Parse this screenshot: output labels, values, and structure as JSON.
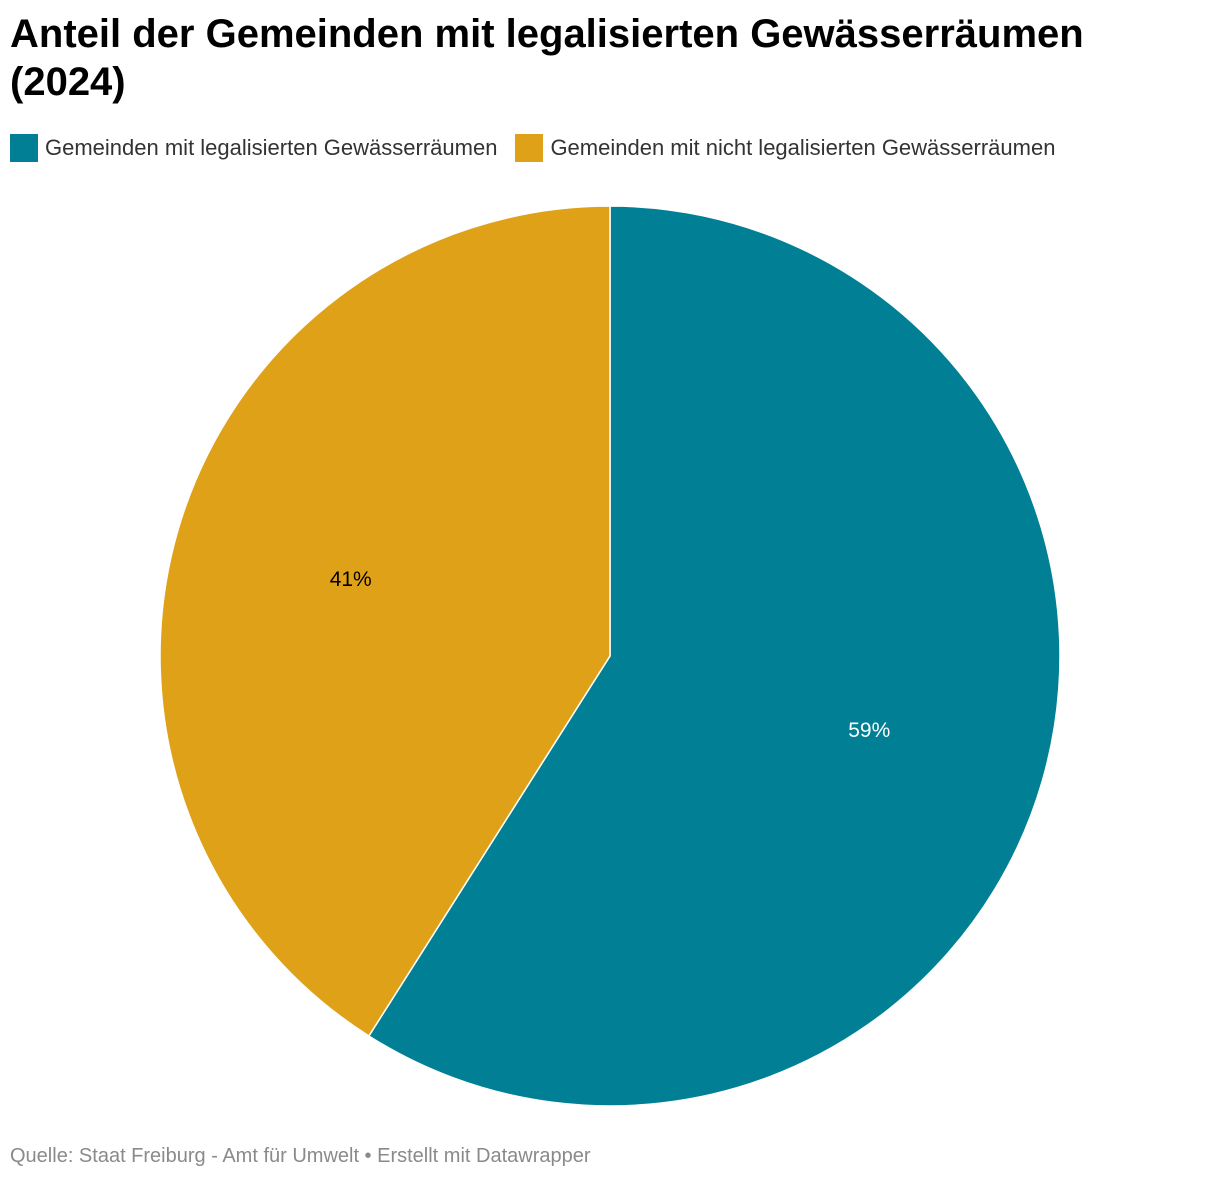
{
  "chart_data": {
    "type": "pie",
    "title": "Anteil der Gemeinden mit legalisierten Gewässerräumen (2024)",
    "slices": [
      {
        "name": "Gemeinden mit legalisierten Gewässerräumen",
        "value": 59,
        "label": "59%",
        "color": "#007f95",
        "label_color": "#ffffff"
      },
      {
        "name": "Gemeinden mit nicht legalisierten Gewässerräumen",
        "value": 41,
        "label": "41%",
        "color": "#dfa117",
        "label_color": "#000000"
      }
    ],
    "legend_position": "top-left",
    "start_angle": "12 o'clock",
    "direction": "clockwise"
  },
  "footer": {
    "source": "Quelle: Staat Freiburg - Amt für Umwelt • Erstellt mit Datawrapper"
  }
}
